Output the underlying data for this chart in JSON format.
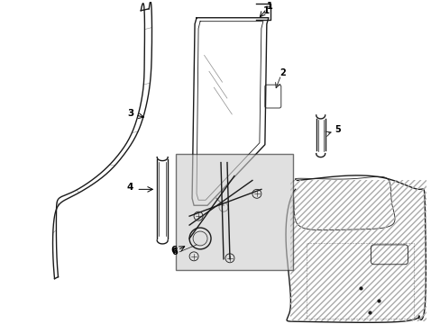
{
  "bg_color": "#ffffff",
  "line_color": "#1a1a1a",
  "figsize": [
    4.89,
    3.6
  ],
  "dpi": 100,
  "panel_color": "#d0d0d0",
  "hatch_color": "#888888"
}
